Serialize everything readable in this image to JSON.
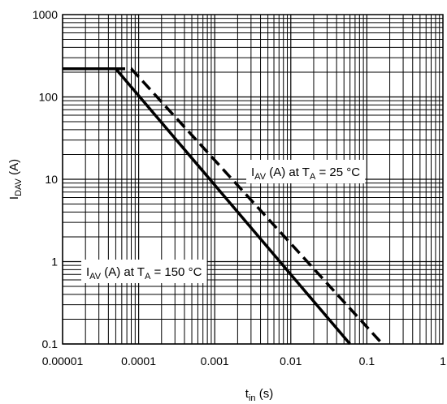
{
  "chart_data": {
    "type": "line",
    "xscale": "log",
    "yscale": "log",
    "xlim": [
      1e-05,
      1
    ],
    "ylim": [
      0.1,
      1000
    ],
    "grid": true,
    "x_ticks": [
      "0.00001",
      "0.0001",
      "0.001",
      "0.01",
      "0.1",
      "1"
    ],
    "y_ticks": [
      "0.1",
      "1",
      "10",
      "100",
      "1000"
    ],
    "xlabel": {
      "main": "t",
      "sub": "in",
      "unit": "(s)"
    },
    "ylabel": {
      "main": "I",
      "sub": "DAV",
      "unit": "(A)"
    },
    "series": [
      {
        "name": "IAV (A) at TA = 150 °C",
        "style": "solid",
        "points": [
          [
            1e-05,
            220
          ],
          [
            5e-05,
            220
          ],
          [
            0.06,
            0.1
          ]
        ]
      },
      {
        "name": "IAV (A) at TA = 25 °C",
        "style": "dashed",
        "points": [
          [
            1e-05,
            220
          ],
          [
            8e-05,
            220
          ],
          [
            0.16,
            0.1
          ]
        ]
      }
    ],
    "annotations": [
      {
        "series": 1,
        "parts": [
          "I",
          "AV",
          " (A) at T",
          "A",
          " = 25 °C"
        ]
      },
      {
        "series": 0,
        "parts": [
          "I",
          "AV",
          " (A) at T",
          "A",
          " = 150 °C"
        ]
      }
    ]
  }
}
